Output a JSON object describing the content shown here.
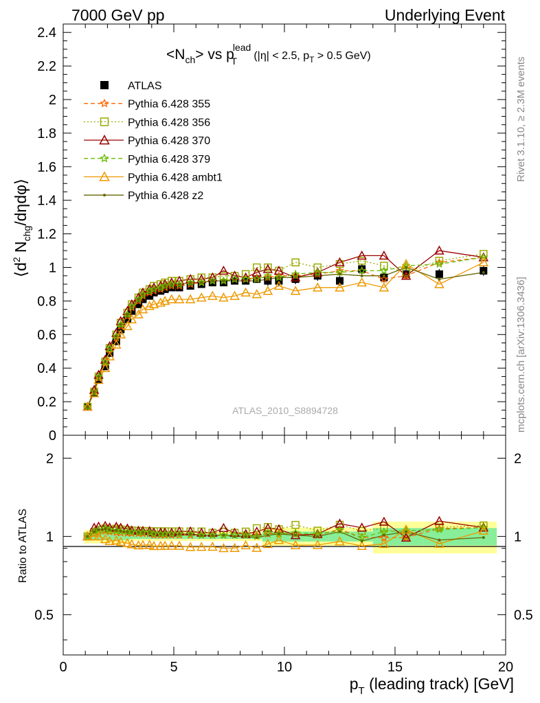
{
  "header": {
    "left": "7000 GeV pp",
    "right": "Underlying Event"
  },
  "title": {
    "main": "<N",
    "main_sub": "ch",
    "main_mid": "> vs p",
    "main_sup": "lead",
    "main_sub2": "T",
    "cut_prefix": " (|η| < 2.5, p",
    "cut_sub": "T",
    "cut_suffix": " > 0.5 GeV)"
  },
  "watermark": "ATLAS_2010_S8894728",
  "side_text": {
    "rivet": "Rivet 3.1.10, ≥ 2.3M events",
    "mcplots": "mcplots.cern.ch [arXiv:1306.3436]"
  },
  "axes": {
    "ylabel_top": "⟨d² N_chg/dηdφ⟩",
    "ylabel_top_parts": [
      "⟨d",
      "2",
      " N",
      "chg",
      "/dηdφ⟩"
    ],
    "ylabel_bottom": "Ratio to ATLAS",
    "xlabel_parts": [
      "p",
      "T",
      " (leading track) [GeV]"
    ],
    "x_ticks": [
      "0",
      "5",
      "10",
      "15",
      "20"
    ],
    "y_ticks_top": [
      "0",
      "0.2",
      "0.4",
      "0.6",
      "0.8",
      "1",
      "1.2",
      "1.4",
      "1.6",
      "1.8",
      "2",
      "2.2",
      "2.4"
    ],
    "y_ticks_ratio": [
      "0.5",
      "1",
      "2"
    ]
  },
  "chart_data": {
    "type": "scatter",
    "xlim": [
      0,
      20
    ],
    "ylim": [
      0,
      2.45
    ],
    "ratio_ylim": [
      0.35,
      2.45
    ],
    "ratio_log": true,
    "x": [
      1.1,
      1.4,
      1.6,
      1.9,
      2.1,
      2.4,
      2.6,
      2.9,
      3.1,
      3.4,
      3.6,
      3.9,
      4.1,
      4.4,
      4.6,
      4.9,
      5.25,
      5.75,
      6.25,
      6.75,
      7.25,
      7.75,
      8.25,
      8.75,
      9.25,
      9.75,
      10.5,
      11.5,
      12.5,
      13.5,
      14.5,
      15.5,
      17.0,
      19.0
    ],
    "series": [
      {
        "name": "ATLAS",
        "color": "#000000",
        "marker": "square",
        "values": [
          0.17,
          0.25,
          0.33,
          0.41,
          0.49,
          0.56,
          0.63,
          0.69,
          0.74,
          0.78,
          0.81,
          0.83,
          0.85,
          0.86,
          0.87,
          0.88,
          0.88,
          0.89,
          0.9,
          0.91,
          0.91,
          0.92,
          0.92,
          0.93,
          0.92,
          0.92,
          0.93,
          0.95,
          0.92,
          0.99,
          0.94,
          0.96,
          0.96,
          0.98
        ]
      },
      {
        "name": "Pythia 6.428 355",
        "color": "#ff6600",
        "marker": "star",
        "dash": "6,4",
        "values": [
          0.17,
          0.26,
          0.34,
          0.43,
          0.51,
          0.58,
          0.65,
          0.71,
          0.76,
          0.8,
          0.83,
          0.85,
          0.86,
          0.87,
          0.88,
          0.89,
          0.89,
          0.9,
          0.91,
          0.92,
          0.92,
          0.93,
          0.93,
          0.94,
          0.94,
          0.95,
          0.95,
          0.96,
          0.98,
          0.98,
          0.93,
          0.95,
          1.03,
          1.06
        ]
      },
      {
        "name": "Pythia 6.428 356",
        "color": "#99aa00",
        "marker": "open-square",
        "dash": "2,3",
        "values": [
          0.17,
          0.26,
          0.35,
          0.44,
          0.52,
          0.6,
          0.67,
          0.73,
          0.78,
          0.82,
          0.85,
          0.87,
          0.89,
          0.9,
          0.91,
          0.92,
          0.92,
          0.93,
          0.94,
          0.94,
          0.95,
          0.95,
          0.96,
          1.0,
          1.0,
          0.98,
          1.03,
          1.0,
          1.02,
          1.04,
          1.01,
          0.97,
          1.04,
          1.08
        ]
      },
      {
        "name": "Pythia 6.428 370",
        "color": "#990000",
        "marker": "open-triangle",
        "values": [
          0.17,
          0.27,
          0.36,
          0.45,
          0.53,
          0.61,
          0.68,
          0.74,
          0.78,
          0.82,
          0.85,
          0.87,
          0.88,
          0.89,
          0.9,
          0.91,
          0.92,
          0.93,
          0.93,
          0.94,
          0.98,
          0.95,
          0.94,
          0.97,
          0.99,
          0.98,
          0.94,
          0.97,
          1.03,
          1.07,
          1.07,
          0.95,
          1.1,
          1.06
        ]
      },
      {
        "name": "Pythia 6.428 379",
        "color": "#66bb00",
        "marker": "star",
        "dash": "6,4",
        "values": [
          0.17,
          0.26,
          0.35,
          0.44,
          0.52,
          0.59,
          0.66,
          0.72,
          0.77,
          0.81,
          0.84,
          0.86,
          0.87,
          0.88,
          0.89,
          0.9,
          0.9,
          0.91,
          0.91,
          0.92,
          0.92,
          0.93,
          0.93,
          0.93,
          0.95,
          0.94,
          0.96,
          0.97,
          0.97,
          0.98,
          0.98,
          1.01,
          1.02,
          1.06
        ]
      },
      {
        "name": "Pythia 6.428 ambt1",
        "color": "#ee9900",
        "marker": "open-triangle",
        "values": [
          0.17,
          0.25,
          0.33,
          0.4,
          0.47,
          0.54,
          0.6,
          0.65,
          0.69,
          0.72,
          0.75,
          0.77,
          0.78,
          0.79,
          0.8,
          0.81,
          0.81,
          0.81,
          0.82,
          0.83,
          0.82,
          0.83,
          0.85,
          0.84,
          0.86,
          0.89,
          0.86,
          0.88,
          0.88,
          0.91,
          0.88,
          1.02,
          0.9,
          1.03
        ]
      },
      {
        "name": "Pythia 6.428 z2",
        "color": "#666600",
        "marker": "dot",
        "values": [
          0.17,
          0.26,
          0.35,
          0.44,
          0.52,
          0.59,
          0.66,
          0.72,
          0.77,
          0.81,
          0.84,
          0.86,
          0.87,
          0.88,
          0.89,
          0.9,
          0.9,
          0.91,
          0.91,
          0.92,
          0.92,
          0.92,
          0.92,
          0.92,
          0.93,
          0.94,
          0.94,
          0.95,
          0.96,
          0.95,
          0.95,
          1.0,
          0.93,
          0.97
        ]
      }
    ]
  }
}
